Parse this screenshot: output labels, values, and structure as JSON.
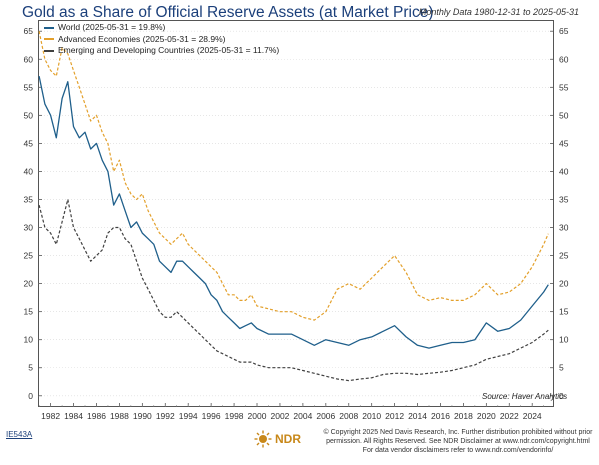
{
  "title": "Gold as a Share of Official Reserve Assets (at Market Price)",
  "subtitle": "Monthly Data 1980-12-31 to 2025-05-31",
  "source": "Source:  Haver Analytics",
  "chart_id": "IE543A",
  "logo_text": "NDR",
  "copyright": "© Copyright 2025 Ned Davis Research, Inc. Further distribution prohibited without prior permission. All Rights Reserved. See NDR Disclaimer at www.ndr.com/copyright.html For data vendor disclaimers refer to www.ndr.com/vendorinfo/",
  "colors": {
    "world": "#1f5f8b",
    "advanced": "#e3a02b",
    "emerging": "#404040",
    "title": "#1b3f7a"
  },
  "chart_data": {
    "type": "line",
    "x_ticks": [
      "1982",
      "1984",
      "1986",
      "1988",
      "1990",
      "1992",
      "1994",
      "1996",
      "1998",
      "2000",
      "2002",
      "2004",
      "2006",
      "2008",
      "2010",
      "2012",
      "2014",
      "2016",
      "2018",
      "2020",
      "2022",
      "2024"
    ],
    "xlim": [
      1980.9,
      2025.9
    ],
    "ylim": [
      -2,
      67
    ],
    "y_ticks": [
      0,
      5,
      10,
      15,
      20,
      25,
      30,
      35,
      40,
      45,
      50,
      55,
      60,
      65
    ],
    "axes": "left-and-right",
    "legend_position": "top-left",
    "series": [
      {
        "name": "World (2025-05-31 = 19.8%)",
        "style": "solid",
        "points": [
          [
            1981,
            57
          ],
          [
            1981.5,
            52
          ],
          [
            1982,
            50
          ],
          [
            1982.5,
            46
          ],
          [
            1983,
            53
          ],
          [
            1983.5,
            56
          ],
          [
            1984,
            48
          ],
          [
            1984.5,
            46
          ],
          [
            1985,
            47
          ],
          [
            1985.5,
            44
          ],
          [
            1986,
            45
          ],
          [
            1986.5,
            42
          ],
          [
            1987,
            40
          ],
          [
            1987.5,
            34
          ],
          [
            1988,
            36
          ],
          [
            1988.5,
            33
          ],
          [
            1989,
            30
          ],
          [
            1989.5,
            31
          ],
          [
            1990,
            29
          ],
          [
            1990.5,
            28
          ],
          [
            1991,
            27
          ],
          [
            1991.5,
            24
          ],
          [
            1992,
            23
          ],
          [
            1992.5,
            22
          ],
          [
            1993,
            24
          ],
          [
            1993.5,
            24
          ],
          [
            1994,
            23
          ],
          [
            1994.5,
            22
          ],
          [
            1995,
            21
          ],
          [
            1995.5,
            20
          ],
          [
            1996,
            18
          ],
          [
            1996.5,
            17
          ],
          [
            1997,
            15
          ],
          [
            1997.5,
            14
          ],
          [
            1998,
            13
          ],
          [
            1998.5,
            12
          ],
          [
            1999,
            12.5
          ],
          [
            1999.5,
            13
          ],
          [
            2000,
            12
          ],
          [
            2001,
            11
          ],
          [
            2002,
            11
          ],
          [
            2003,
            11
          ],
          [
            2004,
            10
          ],
          [
            2005,
            9
          ],
          [
            2006,
            10
          ],
          [
            2007,
            9.5
          ],
          [
            2008,
            9
          ],
          [
            2009,
            10
          ],
          [
            2010,
            10.5
          ],
          [
            2011,
            11.5
          ],
          [
            2012,
            12.5
          ],
          [
            2013,
            10.5
          ],
          [
            2014,
            9
          ],
          [
            2015,
            8.5
          ],
          [
            2016,
            9
          ],
          [
            2017,
            9.5
          ],
          [
            2018,
            9.5
          ],
          [
            2019,
            10
          ],
          [
            2020,
            13
          ],
          [
            2021,
            11.5
          ],
          [
            2022,
            12
          ],
          [
            2023,
            13.5
          ],
          [
            2024,
            16
          ],
          [
            2025,
            18.5
          ],
          [
            2025.4,
            19.8
          ]
        ]
      },
      {
        "name": "Advanced Economies (2025-05-31 = 28.9%)",
        "style": "dashed",
        "points": [
          [
            1981,
            65
          ],
          [
            1981.5,
            60
          ],
          [
            1982,
            58
          ],
          [
            1982.5,
            57
          ],
          [
            1983,
            62
          ],
          [
            1983.5,
            61
          ],
          [
            1984,
            58
          ],
          [
            1984.5,
            55
          ],
          [
            1985,
            52
          ],
          [
            1985.5,
            49
          ],
          [
            1986,
            50
          ],
          [
            1986.5,
            47
          ],
          [
            1987,
            45
          ],
          [
            1987.5,
            40
          ],
          [
            1988,
            42
          ],
          [
            1988.5,
            38
          ],
          [
            1989,
            36
          ],
          [
            1989.5,
            35
          ],
          [
            1990,
            36
          ],
          [
            1990.5,
            33
          ],
          [
            1991,
            31
          ],
          [
            1991.5,
            29
          ],
          [
            1992,
            28
          ],
          [
            1992.5,
            27
          ],
          [
            1993,
            28
          ],
          [
            1993.5,
            29
          ],
          [
            1994,
            27
          ],
          [
            1994.5,
            26
          ],
          [
            1995,
            25
          ],
          [
            1995.5,
            24
          ],
          [
            1996,
            23
          ],
          [
            1996.5,
            22
          ],
          [
            1997,
            20
          ],
          [
            1997.5,
            18
          ],
          [
            1998,
            18
          ],
          [
            1998.5,
            17
          ],
          [
            1999,
            17
          ],
          [
            1999.5,
            18
          ],
          [
            2000,
            16
          ],
          [
            2001,
            15.5
          ],
          [
            2002,
            15
          ],
          [
            2003,
            15
          ],
          [
            2004,
            14
          ],
          [
            2005,
            13.5
          ],
          [
            2006,
            15
          ],
          [
            2007,
            19
          ],
          [
            2008,
            20
          ],
          [
            2009,
            19
          ],
          [
            2010,
            21
          ],
          [
            2011,
            23
          ],
          [
            2012,
            25
          ],
          [
            2013,
            22
          ],
          [
            2014,
            18
          ],
          [
            2015,
            17
          ],
          [
            2016,
            17.5
          ],
          [
            2017,
            17
          ],
          [
            2018,
            17
          ],
          [
            2019,
            18
          ],
          [
            2020,
            20
          ],
          [
            2021,
            18
          ],
          [
            2022,
            18.5
          ],
          [
            2023,
            20
          ],
          [
            2024,
            23
          ],
          [
            2025,
            27
          ],
          [
            2025.4,
            28.9
          ]
        ]
      },
      {
        "name": "Emerging and Developing Countries (2025-05-31 = 11.7%)",
        "style": "dashed",
        "points": [
          [
            1981,
            34
          ],
          [
            1981.5,
            30
          ],
          [
            1982,
            29
          ],
          [
            1982.5,
            27
          ],
          [
            1983,
            31
          ],
          [
            1983.5,
            35
          ],
          [
            1984,
            30
          ],
          [
            1984.5,
            28
          ],
          [
            1985,
            26
          ],
          [
            1985.5,
            24
          ],
          [
            1986,
            25
          ],
          [
            1986.5,
            26
          ],
          [
            1987,
            29
          ],
          [
            1987.5,
            30
          ],
          [
            1988,
            30
          ],
          [
            1988.5,
            28
          ],
          [
            1989,
            27
          ],
          [
            1989.5,
            24
          ],
          [
            1990,
            21
          ],
          [
            1990.5,
            19
          ],
          [
            1991,
            17
          ],
          [
            1991.5,
            15
          ],
          [
            1992,
            14
          ],
          [
            1992.5,
            14
          ],
          [
            1993,
            15
          ],
          [
            1993.5,
            14
          ],
          [
            1994,
            13
          ],
          [
            1994.5,
            12
          ],
          [
            1995,
            11
          ],
          [
            1995.5,
            10
          ],
          [
            1996,
            9
          ],
          [
            1996.5,
            8
          ],
          [
            1997,
            7.5
          ],
          [
            1997.5,
            7
          ],
          [
            1998,
            6.5
          ],
          [
            1998.5,
            6
          ],
          [
            1999,
            6
          ],
          [
            1999.5,
            6
          ],
          [
            2000,
            5.5
          ],
          [
            2001,
            5
          ],
          [
            2002,
            5
          ],
          [
            2003,
            5
          ],
          [
            2004,
            4.5
          ],
          [
            2005,
            4
          ],
          [
            2006,
            3.5
          ],
          [
            2007,
            3
          ],
          [
            2008,
            2.7
          ],
          [
            2009,
            3
          ],
          [
            2010,
            3.2
          ],
          [
            2011,
            3.8
          ],
          [
            2012,
            4
          ],
          [
            2013,
            4
          ],
          [
            2014,
            3.8
          ],
          [
            2015,
            4
          ],
          [
            2016,
            4.2
          ],
          [
            2017,
            4.5
          ],
          [
            2018,
            5
          ],
          [
            2019,
            5.5
          ],
          [
            2020,
            6.5
          ],
          [
            2021,
            7
          ],
          [
            2022,
            7.5
          ],
          [
            2023,
            8.5
          ],
          [
            2024,
            9.5
          ],
          [
            2025,
            11
          ],
          [
            2025.4,
            11.7
          ]
        ]
      }
    ]
  }
}
